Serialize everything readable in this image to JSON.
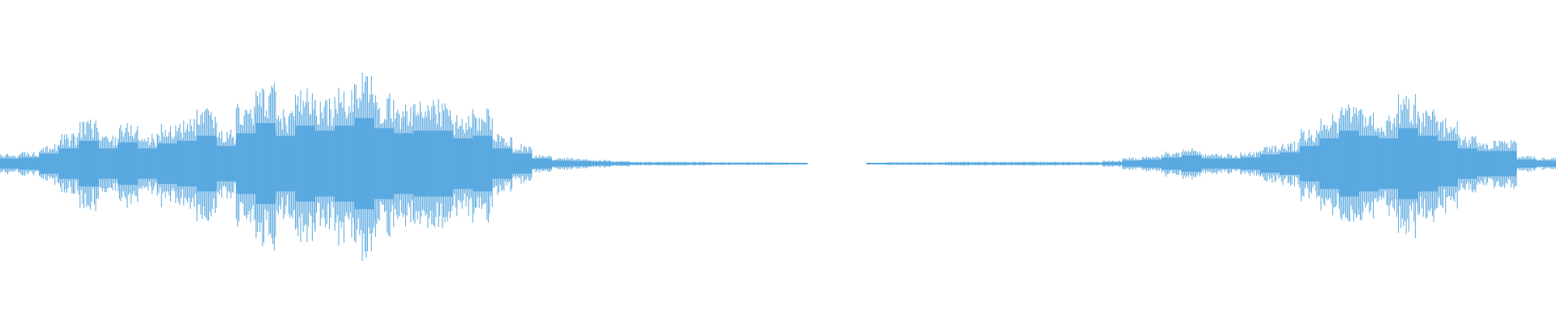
{
  "waveform": {
    "color": "#5aa9e0",
    "amplitude": [
      10,
      12,
      20,
      30,
      45,
      30,
      42,
      30,
      40,
      45,
      55,
      35,
      60,
      80,
      55,
      75,
      65,
      75,
      90,
      70,
      60,
      65,
      65,
      50,
      55,
      30,
      20,
      10,
      6,
      5,
      4,
      3,
      2,
      2,
      2,
      2,
      1.5,
      1.5,
      1.5,
      1.5,
      1,
      null,
      null,
      null,
      1,
      1.5,
      1.5,
      1.5,
      2,
      2,
      2,
      2,
      2,
      2,
      2,
      2,
      3,
      6,
      8,
      12,
      16,
      10,
      10,
      12,
      18,
      22,
      35,
      50,
      65,
      55,
      50,
      70,
      55,
      45,
      30,
      25,
      25,
      8,
      6
    ]
  }
}
